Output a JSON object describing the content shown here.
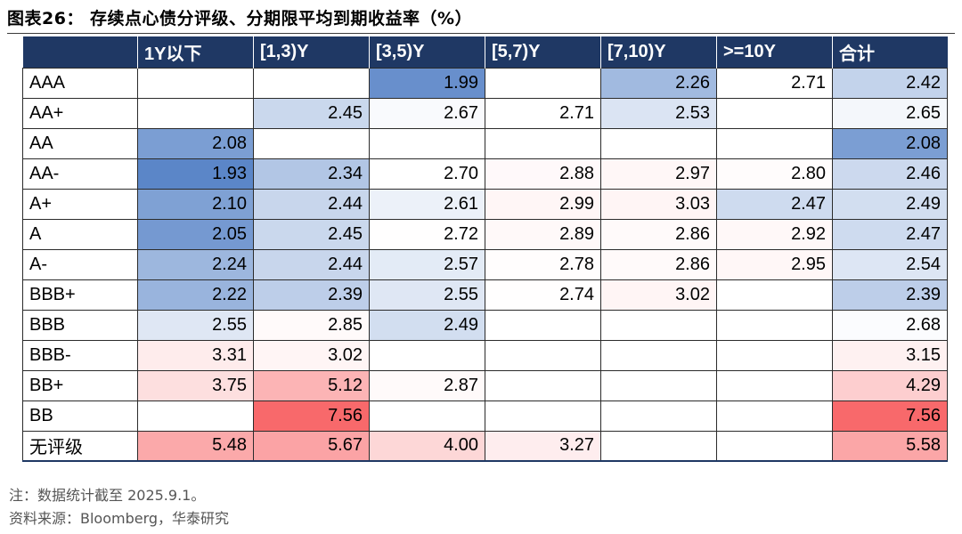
{
  "figure": {
    "title": "图表26：  存续点心债分评级、分期限平均到期收益率（%）"
  },
  "table": {
    "headers": [
      "",
      "1Y以下",
      "[1,3)Y",
      "[3,5)Y",
      "[5,7)Y",
      "[7,10)Y",
      ">=10Y",
      "合计"
    ],
    "rows": [
      {
        "label": "AAA",
        "cells": [
          "",
          "",
          "1.99",
          "",
          "2.26",
          "2.71",
          "2.42"
        ]
      },
      {
        "label": "AA+",
        "cells": [
          "",
          "2.45",
          "2.67",
          "2.71",
          "2.53",
          "",
          "2.65"
        ]
      },
      {
        "label": "AA",
        "cells": [
          "2.08",
          "",
          "",
          "",
          "",
          "",
          "2.08"
        ]
      },
      {
        "label": "AA-",
        "cells": [
          "1.93",
          "2.34",
          "2.70",
          "2.88",
          "2.97",
          "2.80",
          "2.46"
        ]
      },
      {
        "label": "A+",
        "cells": [
          "2.10",
          "2.44",
          "2.61",
          "2.99",
          "3.03",
          "2.47",
          "2.49"
        ]
      },
      {
        "label": "A",
        "cells": [
          "2.05",
          "2.45",
          "2.72",
          "2.89",
          "2.86",
          "2.92",
          "2.47"
        ]
      },
      {
        "label": "A-",
        "cells": [
          "2.24",
          "2.44",
          "2.57",
          "2.78",
          "2.86",
          "2.95",
          "2.54"
        ]
      },
      {
        "label": "BBB+",
        "cells": [
          "2.22",
          "2.39",
          "2.55",
          "2.74",
          "3.02",
          "",
          "2.39"
        ]
      },
      {
        "label": "BBB",
        "cells": [
          "2.55",
          "2.85",
          "2.49",
          "",
          "",
          "",
          "2.68"
        ]
      },
      {
        "label": "BBB-",
        "cells": [
          "3.31",
          "3.02",
          "",
          "",
          "",
          "",
          "3.15"
        ]
      },
      {
        "label": "BB+",
        "cells": [
          "3.75",
          "5.12",
          "2.87",
          "",
          "",
          "",
          "4.29"
        ]
      },
      {
        "label": "BB",
        "cells": [
          "",
          "7.56",
          "",
          "",
          "",
          "",
          "7.56"
        ]
      },
      {
        "label": "无评级",
        "cells": [
          "5.48",
          "5.67",
          "4.00",
          "3.27",
          "",
          "",
          "5.58"
        ]
      }
    ]
  },
  "notes": {
    "note": "注：数据统计截至 2025.9.1。",
    "source": "资料来源：Bloomberg，华泰研究"
  },
  "colors": {
    "header_bg": "#1f3864",
    "low_value": "#5b86c8",
    "mid_value": "#ffffff",
    "high_value": "#f8696b"
  }
}
